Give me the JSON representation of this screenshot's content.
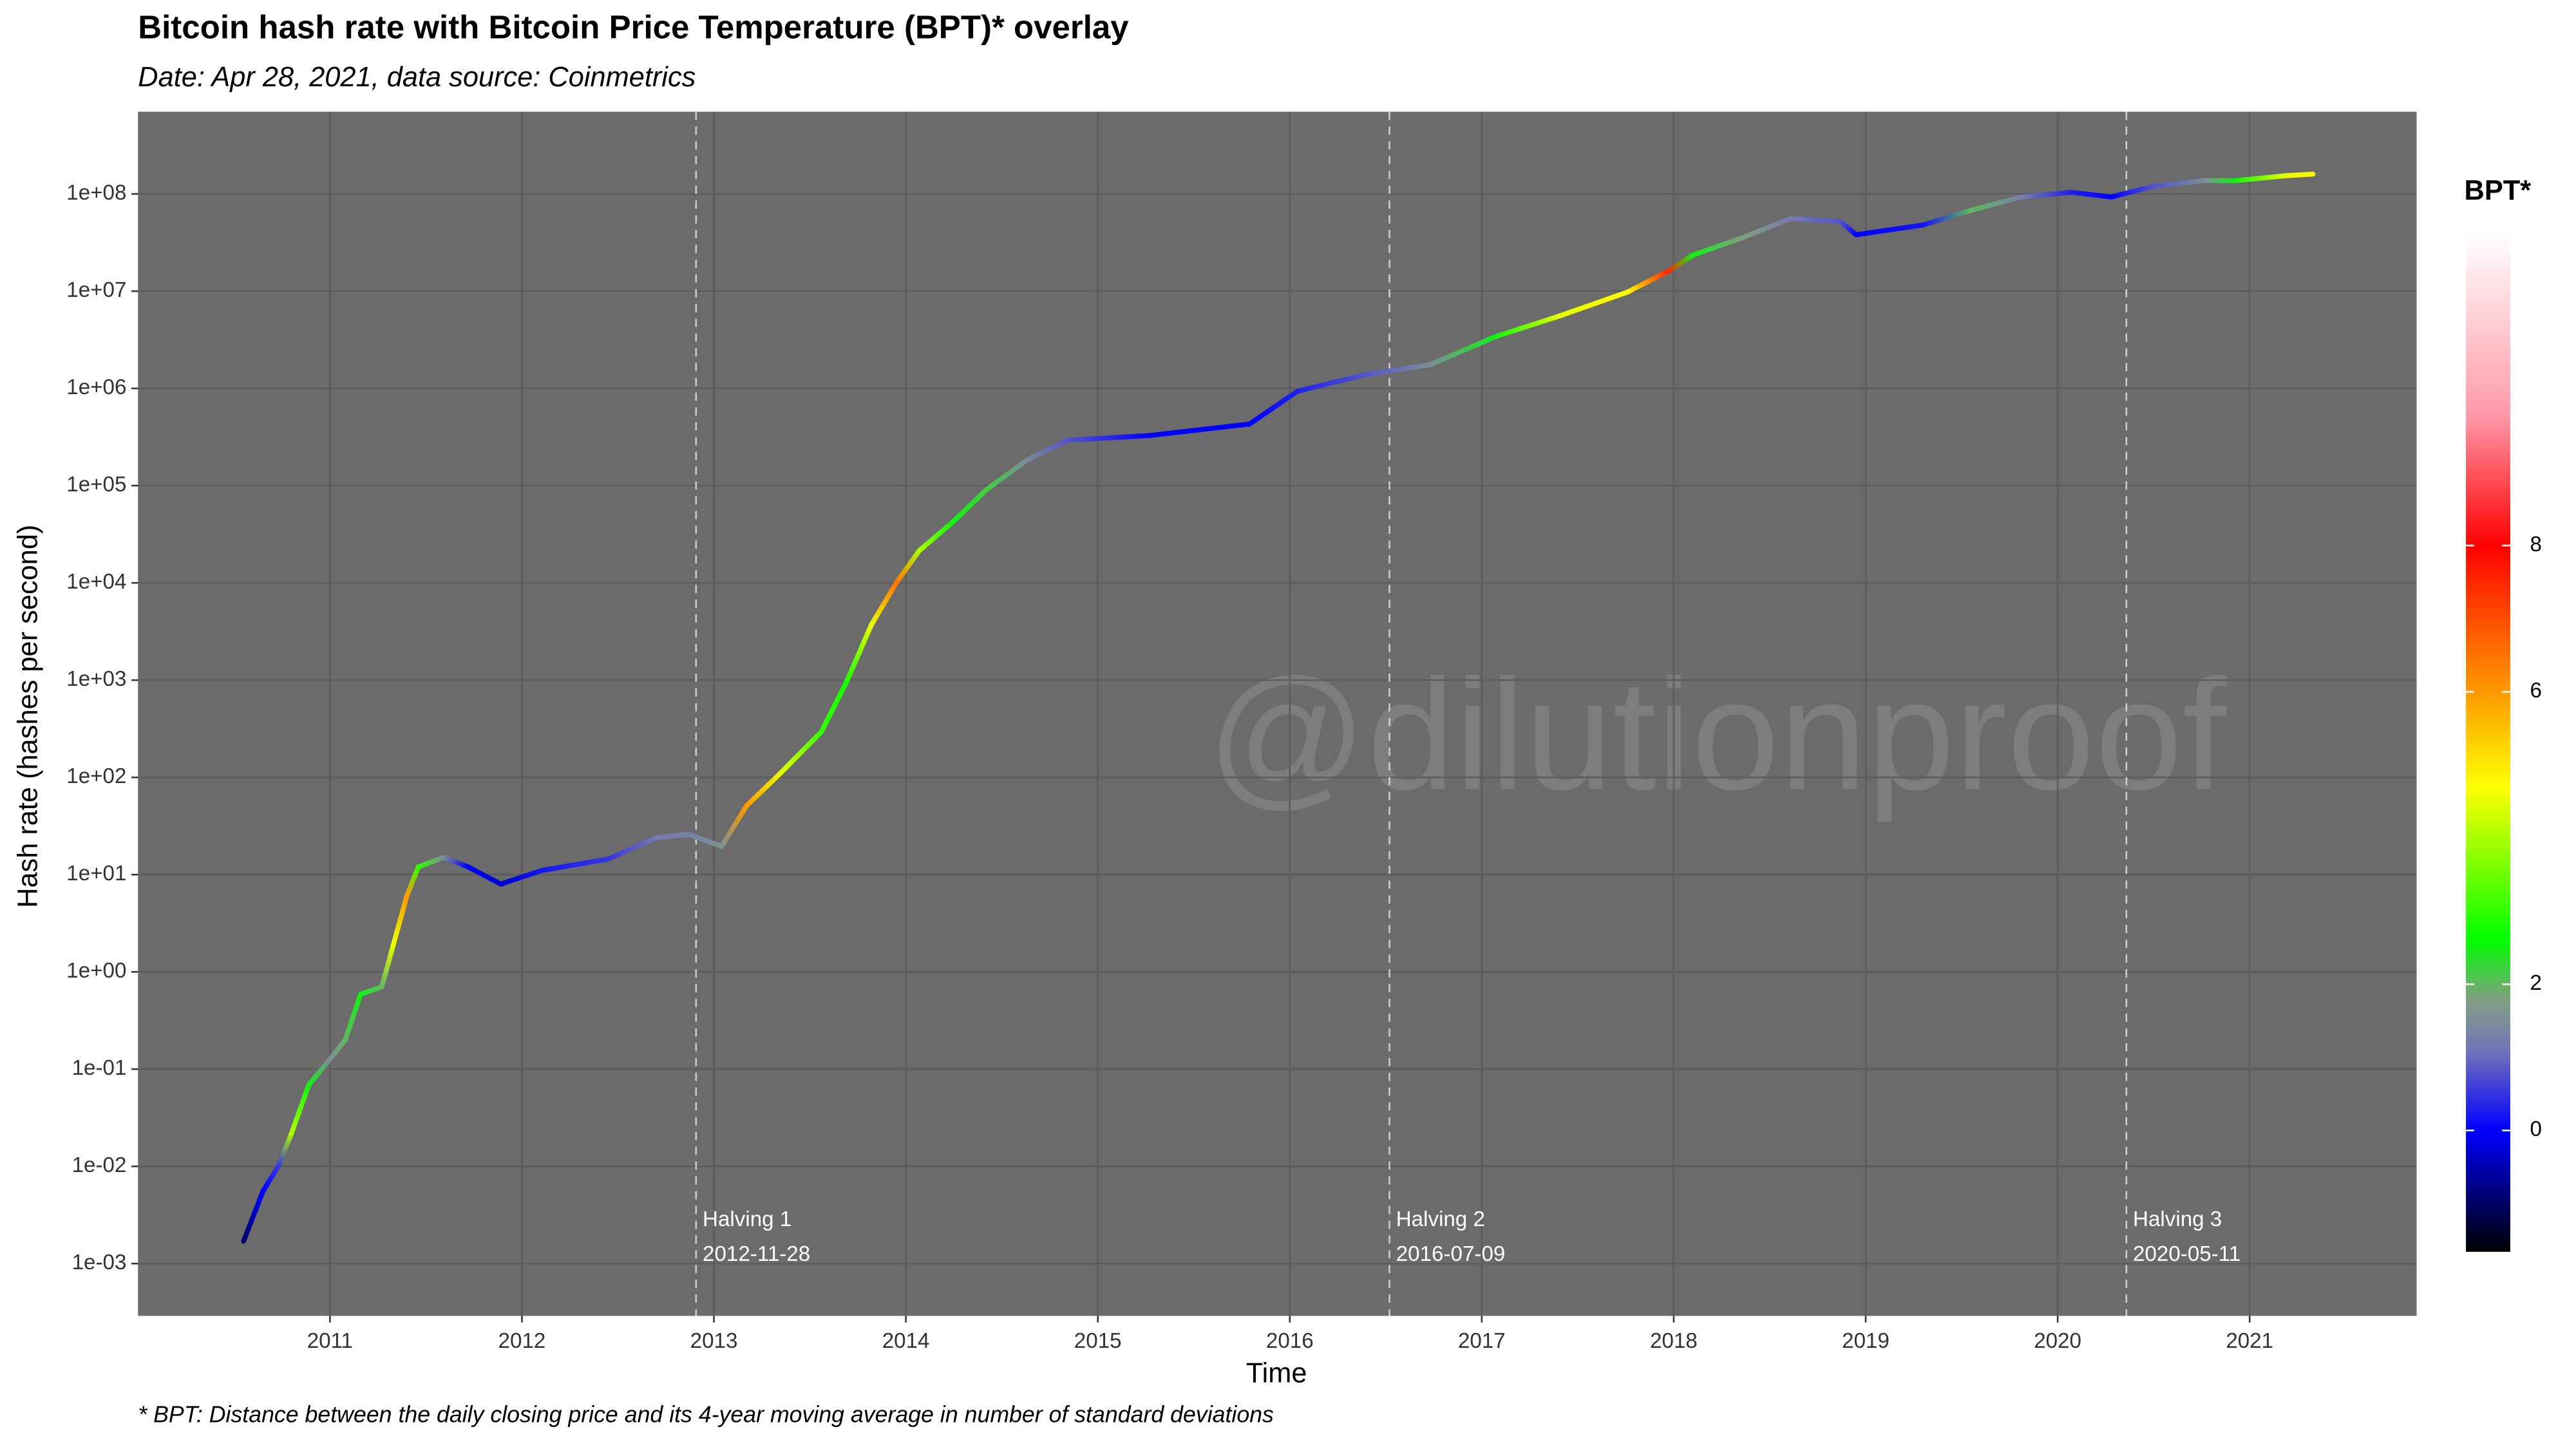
{
  "chart_data": {
    "type": "line",
    "title": "Bitcoin hash rate with Bitcoin Price Temperature (BPT)* overlay",
    "subtitle": "Date: Apr 28, 2021, data source: Coinmetrics",
    "footnote": "* BPT: Distance between the daily closing price and its 4-year moving average in number of standard deviations",
    "xlabel": "Time",
    "ylabel": "Hash rate (hashes per second)",
    "watermark": "@dilutionproof",
    "log_y": true,
    "grid": true,
    "background": "#6b6b6b",
    "grid_color": "#5c5c5c",
    "x": [
      2010.55,
      2010.65,
      2010.73,
      2010.8,
      2010.89,
      2011.0,
      2011.08,
      2011.16,
      2011.27,
      2011.33,
      2011.4,
      2011.46,
      2011.59,
      2011.72,
      2011.89,
      2012.1,
      2012.45,
      2012.7,
      2012.87,
      2013.04,
      2013.17,
      2013.35,
      2013.56,
      2013.69,
      2013.82,
      2013.95,
      2014.07,
      2014.24,
      2014.42,
      2014.63,
      2014.84,
      2015.27,
      2015.79,
      2016.04,
      2016.39,
      2016.73,
      2017.07,
      2017.41,
      2017.76,
      2017.97,
      2018.1,
      2018.35,
      2018.61,
      2018.87,
      2018.95,
      2019.3,
      2019.55,
      2019.81,
      2020.07,
      2020.28,
      2020.5,
      2020.76,
      2020.93,
      2021.19,
      2021.33
    ],
    "series": [
      {
        "values": [
          0.0017,
          0.0055,
          0.01,
          0.022,
          0.069,
          0.126,
          0.2,
          0.59,
          0.7,
          1.9,
          6,
          12,
          15,
          12,
          8,
          11,
          14.5,
          24,
          26,
          19.5,
          51,
          112,
          295,
          950,
          3700,
          10000,
          21500,
          41500,
          91000,
          183000,
          293000,
          328000,
          430000,
          935000,
          1380000,
          1750000,
          3400000,
          5600000,
          9800000,
          16000000,
          23500000,
          35000000,
          56000000,
          52000000,
          38000000,
          48000000,
          68000000,
          93000000,
          104000000,
          93000000,
          120000000,
          137000000,
          137000000,
          154000000,
          160000000
        ],
        "bpt": [
          -1,
          0,
          0.5,
          4,
          2.5,
          1.5,
          2,
          2.5,
          2,
          4.5,
          6,
          3,
          1.5,
          0,
          -0.3,
          0.2,
          0.5,
          1.2,
          1.3,
          1.6,
          6,
          4.5,
          3,
          2.8,
          4.5,
          6.5,
          4,
          2.5,
          2.2,
          1.5,
          0.8,
          0,
          0,
          0.3,
          0.8,
          1.5,
          2.5,
          4.5,
          4.8,
          7.5,
          2.5,
          1.8,
          1.2,
          0.8,
          0,
          0.2,
          2,
          1.3,
          0.3,
          0,
          0.8,
          1.5,
          2.5,
          4.5,
          4.8
        ]
      }
    ],
    "xlim": [
      2010.0,
      2021.87
    ],
    "xticks": [
      2011,
      2012,
      2013,
      2014,
      2015,
      2016,
      2017,
      2018,
      2019,
      2020,
      2021
    ],
    "ylim": [
      0.00029,
      700000000
    ],
    "yticks": [
      {
        "value": 0.001,
        "label": "1e-03"
      },
      {
        "value": 0.01,
        "label": "1e-02"
      },
      {
        "value": 0.1,
        "label": "1e-01"
      },
      {
        "value": 1,
        "label": "1e+00"
      },
      {
        "value": 10,
        "label": "1e+01"
      },
      {
        "value": 100,
        "label": "1e+02"
      },
      {
        "value": 1000,
        "label": "1e+03"
      },
      {
        "value": 10000,
        "label": "1e+04"
      },
      {
        "value": 100000,
        "label": "1e+05"
      },
      {
        "value": 1000000,
        "label": "1e+06"
      },
      {
        "value": 10000000,
        "label": "1e+07"
      },
      {
        "value": 100000000,
        "label": "1e+08"
      }
    ],
    "annotations": [
      {
        "label": "Halving 1",
        "date": "2012-11-28"
      },
      {
        "label": "Halving 2",
        "date": "2016-07-09"
      },
      {
        "label": "Halving 3",
        "date": "2020-05-11"
      }
    ],
    "colorbar": {
      "title": "BPT*",
      "lim": [
        -1.66,
        12.27
      ],
      "ticks": [
        0,
        2,
        6,
        8
      ],
      "stops": [
        {
          "value": -1.66,
          "color": "#000000"
        },
        {
          "value": 0,
          "color": "#0000ff"
        },
        {
          "value": 1.1,
          "color": "#7474b8"
        },
        {
          "value": 1.8,
          "color": "#80a080"
        },
        {
          "value": 2.6,
          "color": "#00ff00"
        },
        {
          "value": 4.7,
          "color": "#ffff00"
        },
        {
          "value": 6,
          "color": "#ff9900"
        },
        {
          "value": 8,
          "color": "#ff0000"
        },
        {
          "value": 9.8,
          "color": "#ff9aaa"
        },
        {
          "value": 12.27,
          "color": "#ffffff"
        }
      ]
    }
  }
}
